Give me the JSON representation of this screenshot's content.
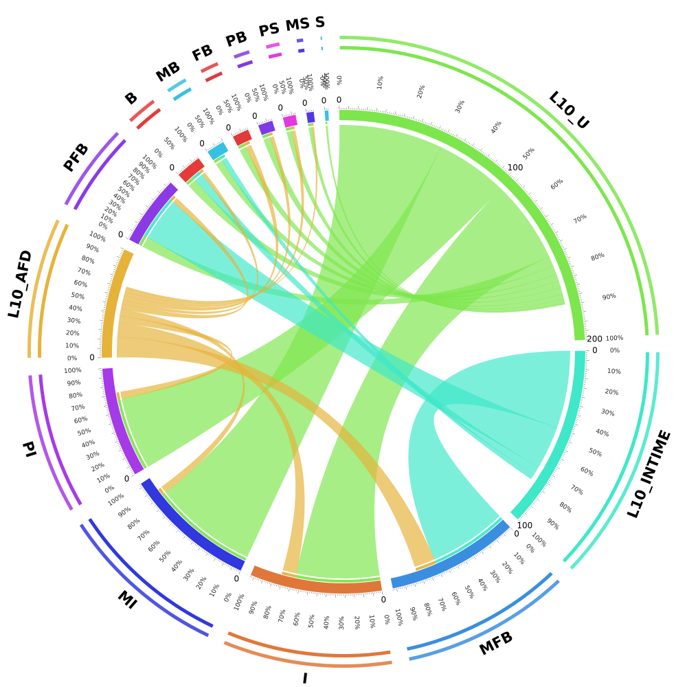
{
  "chart_data": {
    "type": "chord",
    "title": "",
    "start_angle_deg": -1,
    "gap_deg": 2.6,
    "sectors": [
      {
        "name": "L10_U",
        "size": 200,
        "color": "#7de64d",
        "scale_ticks": [
          0,
          100,
          200
        ]
      },
      {
        "name": "L10_INTIME",
        "size": 100,
        "color": "#3ee8c8",
        "scale_ticks": [
          0,
          100
        ]
      },
      {
        "name": "MFB",
        "size": 72,
        "color": "#3a8ee0",
        "scale_ticks": [
          0
        ]
      },
      {
        "name": "I",
        "size": 72,
        "color": "#e0773a",
        "scale_ticks": [
          0
        ]
      },
      {
        "name": "MI",
        "size": 72,
        "color": "#3038de",
        "scale_ticks": [
          0
        ]
      },
      {
        "name": "PI",
        "size": 60,
        "color": "#a63ae8",
        "scale_ticks": [
          0
        ]
      },
      {
        "name": "L10_AFD",
        "size": 60,
        "color": "#e6b33a",
        "scale_ticks": [
          0
        ]
      },
      {
        "name": "PFB",
        "size": 38,
        "color": "#8b3ae6",
        "scale_ticks": [
          0
        ]
      },
      {
        "name": "B",
        "size": 14,
        "color": "#e63a3a",
        "scale_ticks": [
          0
        ]
      },
      {
        "name": "MB",
        "size": 10,
        "color": "#38c0e3",
        "scale_ticks": [
          0
        ]
      },
      {
        "name": "FB",
        "size": 9,
        "color": "#e03a3a",
        "scale_ticks": [
          0
        ]
      },
      {
        "name": "PB",
        "size": 8,
        "color": "#7f3ae6",
        "scale_ticks": [
          0
        ]
      },
      {
        "name": "PS",
        "size": 7,
        "color": "#e33ae0",
        "scale_ticks": [
          0
        ]
      },
      {
        "name": "MS",
        "size": 4,
        "color": "#5038e3",
        "scale_ticks": [
          0
        ]
      },
      {
        "name": "S",
        "size": 2,
        "color": "#38c0e3",
        "scale_ticks": [
          0
        ]
      }
    ],
    "flows": [
      {
        "from": "L10_U",
        "to": "MI",
        "value": 60
      },
      {
        "from": "L10_U",
        "to": "PI",
        "value": 42
      },
      {
        "from": "L10_U",
        "to": "I",
        "value": 48
      },
      {
        "from": "L10_U",
        "to": "PFB",
        "value": 6
      },
      {
        "from": "L10_U",
        "to": "B",
        "value": 5
      },
      {
        "from": "L10_U",
        "to": "MB",
        "value": 4
      },
      {
        "from": "L10_U",
        "to": "FB",
        "value": 4
      },
      {
        "from": "L10_U",
        "to": "PB",
        "value": 4
      },
      {
        "from": "L10_U",
        "to": "PS",
        "value": 3
      },
      {
        "from": "L10_U",
        "to": "MS",
        "value": 2
      },
      {
        "from": "L10_U",
        "to": "S",
        "value": 1
      },
      {
        "from": "L10_INTIME",
        "to": "MFB",
        "value": 45
      },
      {
        "from": "L10_INTIME",
        "to": "PFB",
        "value": 25
      },
      {
        "from": "L10_INTIME",
        "to": "B",
        "value": 5
      },
      {
        "from": "L10_INTIME",
        "to": "MB",
        "value": 3
      },
      {
        "from": "L10_AFD",
        "to": "MFB",
        "value": 12
      },
      {
        "from": "L10_AFD",
        "to": "I",
        "value": 8
      },
      {
        "from": "L10_AFD",
        "to": "PI",
        "value": 4
      },
      {
        "from": "L10_AFD",
        "to": "MI",
        "value": 4
      },
      {
        "from": "L10_AFD",
        "to": "PFB",
        "value": 3
      },
      {
        "from": "L10_AFD",
        "to": "B",
        "value": 2
      },
      {
        "from": "L10_AFD",
        "to": "FB",
        "value": 3
      },
      {
        "from": "L10_AFD",
        "to": "PB",
        "value": 2
      },
      {
        "from": "L10_AFD",
        "to": "PS",
        "value": 2
      },
      {
        "from": "L10_AFD",
        "to": "MS",
        "value": 1
      }
    ]
  }
}
